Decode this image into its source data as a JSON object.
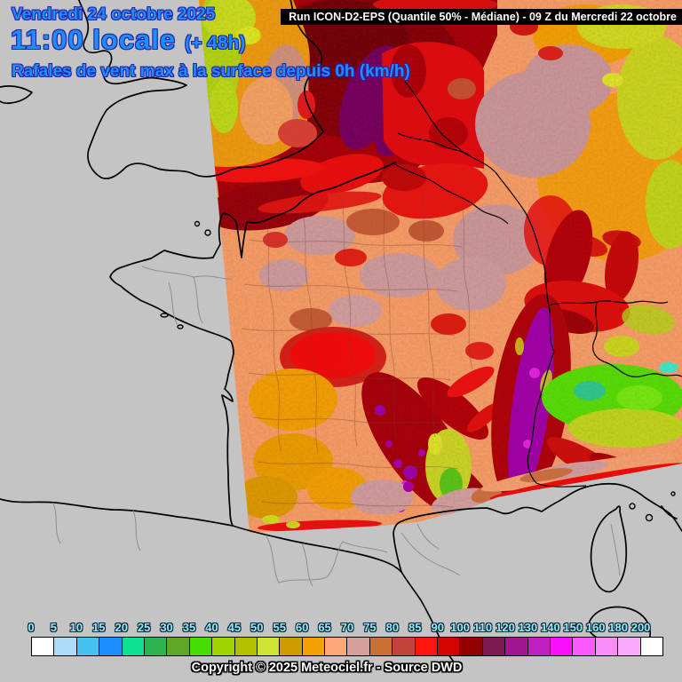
{
  "title_block": {
    "date": "Vendredi 24 octobre 2025",
    "time": "11:00 locale",
    "forecast_offset": "(+ 48h)",
    "variable": "Rafales de vent max à la surface depuis 0h (km/h)"
  },
  "run_banner": "Run ICON-D2-EPS (Quantile 50% - Médiane) - 09 Z du Mercredi 22 octobre",
  "footer": {
    "copyright": "Copyright © 2025 Meteociel.fr - Source DWD"
  },
  "legend": {
    "unit": "km/h",
    "ticks": [
      "0",
      "5",
      "10",
      "15",
      "20",
      "25",
      "30",
      "35",
      "40",
      "45",
      "50",
      "55",
      "60",
      "65",
      "70",
      "75",
      "80",
      "85",
      "90",
      "100",
      "110",
      "120",
      "130",
      "140",
      "150",
      "160",
      "180",
      "200"
    ],
    "colors": [
      "#FFFFFF",
      "#ACDCF8",
      "#46C2F2",
      "#1E8EFE",
      "#0DE092",
      "#2EB44E",
      "#5EA626",
      "#46DE02",
      "#9ED402",
      "#B4BE00",
      "#CEE234",
      "#CF9C00",
      "#F2A100",
      "#FFA877",
      "#D6A19B",
      "#C97134",
      "#C14438",
      "#FF150E",
      "#D40500",
      "#940000",
      "#7C1850",
      "#A01890",
      "#C020C0",
      "#FA10FA",
      "#FA5AFA",
      "#F88CF8",
      "#FAAAFA",
      "#FFFFFF"
    ]
  },
  "colors": {
    "text_blue": "#1E8EFE",
    "text_outline": "#2822A8",
    "tick_cyan": "#8FF0F6",
    "sea_gray": "#C4C4C4",
    "banner_bg": "#000000",
    "banner_fg": "#FFFFFF"
  }
}
